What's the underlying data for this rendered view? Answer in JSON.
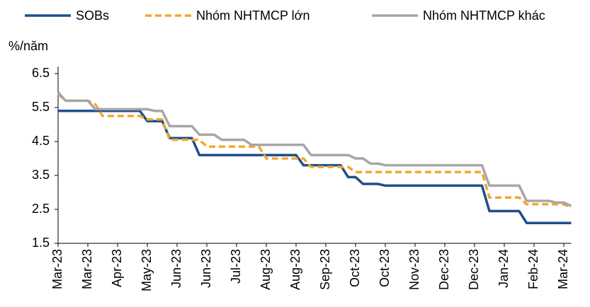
{
  "chart_data": {
    "type": "line",
    "y_axis_label": "%/năm",
    "categories": [
      "Mar-23",
      null,
      null,
      null,
      "Mar-23",
      null,
      null,
      null,
      "Apr-23",
      null,
      null,
      null,
      "May-23",
      null,
      null,
      null,
      "Jun-23",
      null,
      null,
      null,
      "Jun-23",
      null,
      null,
      null,
      "Jul-23",
      null,
      null,
      null,
      "Aug-23",
      null,
      null,
      null,
      "Aug-23",
      null,
      null,
      null,
      "Sep-23",
      null,
      null,
      null,
      "Oct-23",
      null,
      null,
      null,
      "Oct-23",
      null,
      null,
      null,
      "Nov-23",
      null,
      null,
      null,
      "Dec-23",
      null,
      null,
      null,
      "Dec-23",
      null,
      null,
      null,
      "Jan-24",
      null,
      null,
      null,
      "Feb-24",
      null,
      null,
      null,
      "Mar-24",
      null
    ],
    "series": [
      {
        "name": "SOBs",
        "color": "#1f4e8c",
        "dashed": false,
        "values": [
          5.4,
          5.4,
          5.4,
          5.4,
          5.4,
          5.4,
          5.4,
          5.4,
          5.4,
          5.4,
          5.4,
          5.4,
          5.1,
          5.1,
          5.1,
          4.6,
          4.6,
          4.6,
          4.6,
          4.1,
          4.1,
          4.1,
          4.1,
          4.1,
          4.1,
          4.1,
          4.1,
          4.1,
          4.1,
          4.1,
          4.1,
          4.1,
          4.1,
          3.8,
          3.8,
          3.8,
          3.8,
          3.8,
          3.8,
          3.45,
          3.45,
          3.25,
          3.25,
          3.25,
          3.2,
          3.2,
          3.2,
          3.2,
          3.2,
          3.2,
          3.2,
          3.2,
          3.2,
          3.2,
          3.2,
          3.2,
          3.2,
          3.2,
          2.45,
          2.45,
          2.45,
          2.45,
          2.45,
          2.1,
          2.1,
          2.1,
          2.1,
          2.1,
          2.1,
          2.1
        ]
      },
      {
        "name": "Nhóm NHTMCP lớn",
        "color": "#f0a830",
        "dashed": true,
        "values": [
          5.9,
          5.7,
          5.7,
          5.7,
          5.7,
          5.6,
          5.25,
          5.25,
          5.25,
          5.25,
          5.25,
          5.25,
          5.15,
          5.15,
          5.15,
          4.55,
          4.55,
          4.55,
          4.55,
          4.55,
          4.35,
          4.35,
          4.35,
          4.35,
          4.35,
          4.35,
          4.35,
          4.35,
          4.0,
          4.0,
          4.0,
          4.0,
          4.0,
          4.0,
          3.75,
          3.75,
          3.75,
          3.75,
          3.75,
          3.75,
          3.6,
          3.6,
          3.6,
          3.6,
          3.6,
          3.6,
          3.6,
          3.6,
          3.6,
          3.6,
          3.6,
          3.6,
          3.6,
          3.6,
          3.6,
          3.6,
          3.6,
          3.6,
          2.85,
          2.85,
          2.85,
          2.85,
          2.85,
          2.65,
          2.65,
          2.65,
          2.65,
          2.65,
          2.65,
          2.55
        ]
      },
      {
        "name": "Nhóm NHTMCP khác",
        "color": "#a6a6a6",
        "dashed": false,
        "values": [
          5.95,
          5.7,
          5.7,
          5.7,
          5.7,
          5.45,
          5.45,
          5.45,
          5.45,
          5.45,
          5.45,
          5.45,
          5.45,
          5.4,
          5.4,
          4.95,
          4.95,
          4.95,
          4.95,
          4.7,
          4.7,
          4.7,
          4.55,
          4.55,
          4.55,
          4.55,
          4.4,
          4.4,
          4.4,
          4.4,
          4.4,
          4.4,
          4.4,
          4.4,
          4.1,
          4.1,
          4.1,
          4.1,
          4.1,
          4.1,
          4.0,
          4.0,
          3.85,
          3.85,
          3.8,
          3.8,
          3.8,
          3.8,
          3.8,
          3.8,
          3.8,
          3.8,
          3.8,
          3.8,
          3.8,
          3.8,
          3.8,
          3.8,
          3.2,
          3.2,
          3.2,
          3.2,
          3.2,
          2.75,
          2.75,
          2.75,
          2.75,
          2.7,
          2.7,
          2.6
        ]
      }
    ],
    "ylim": [
      1.5,
      6.5
    ],
    "yticks": [
      1.5,
      2.5,
      3.5,
      4.5,
      5.5,
      6.5
    ],
    "legend": "top"
  }
}
